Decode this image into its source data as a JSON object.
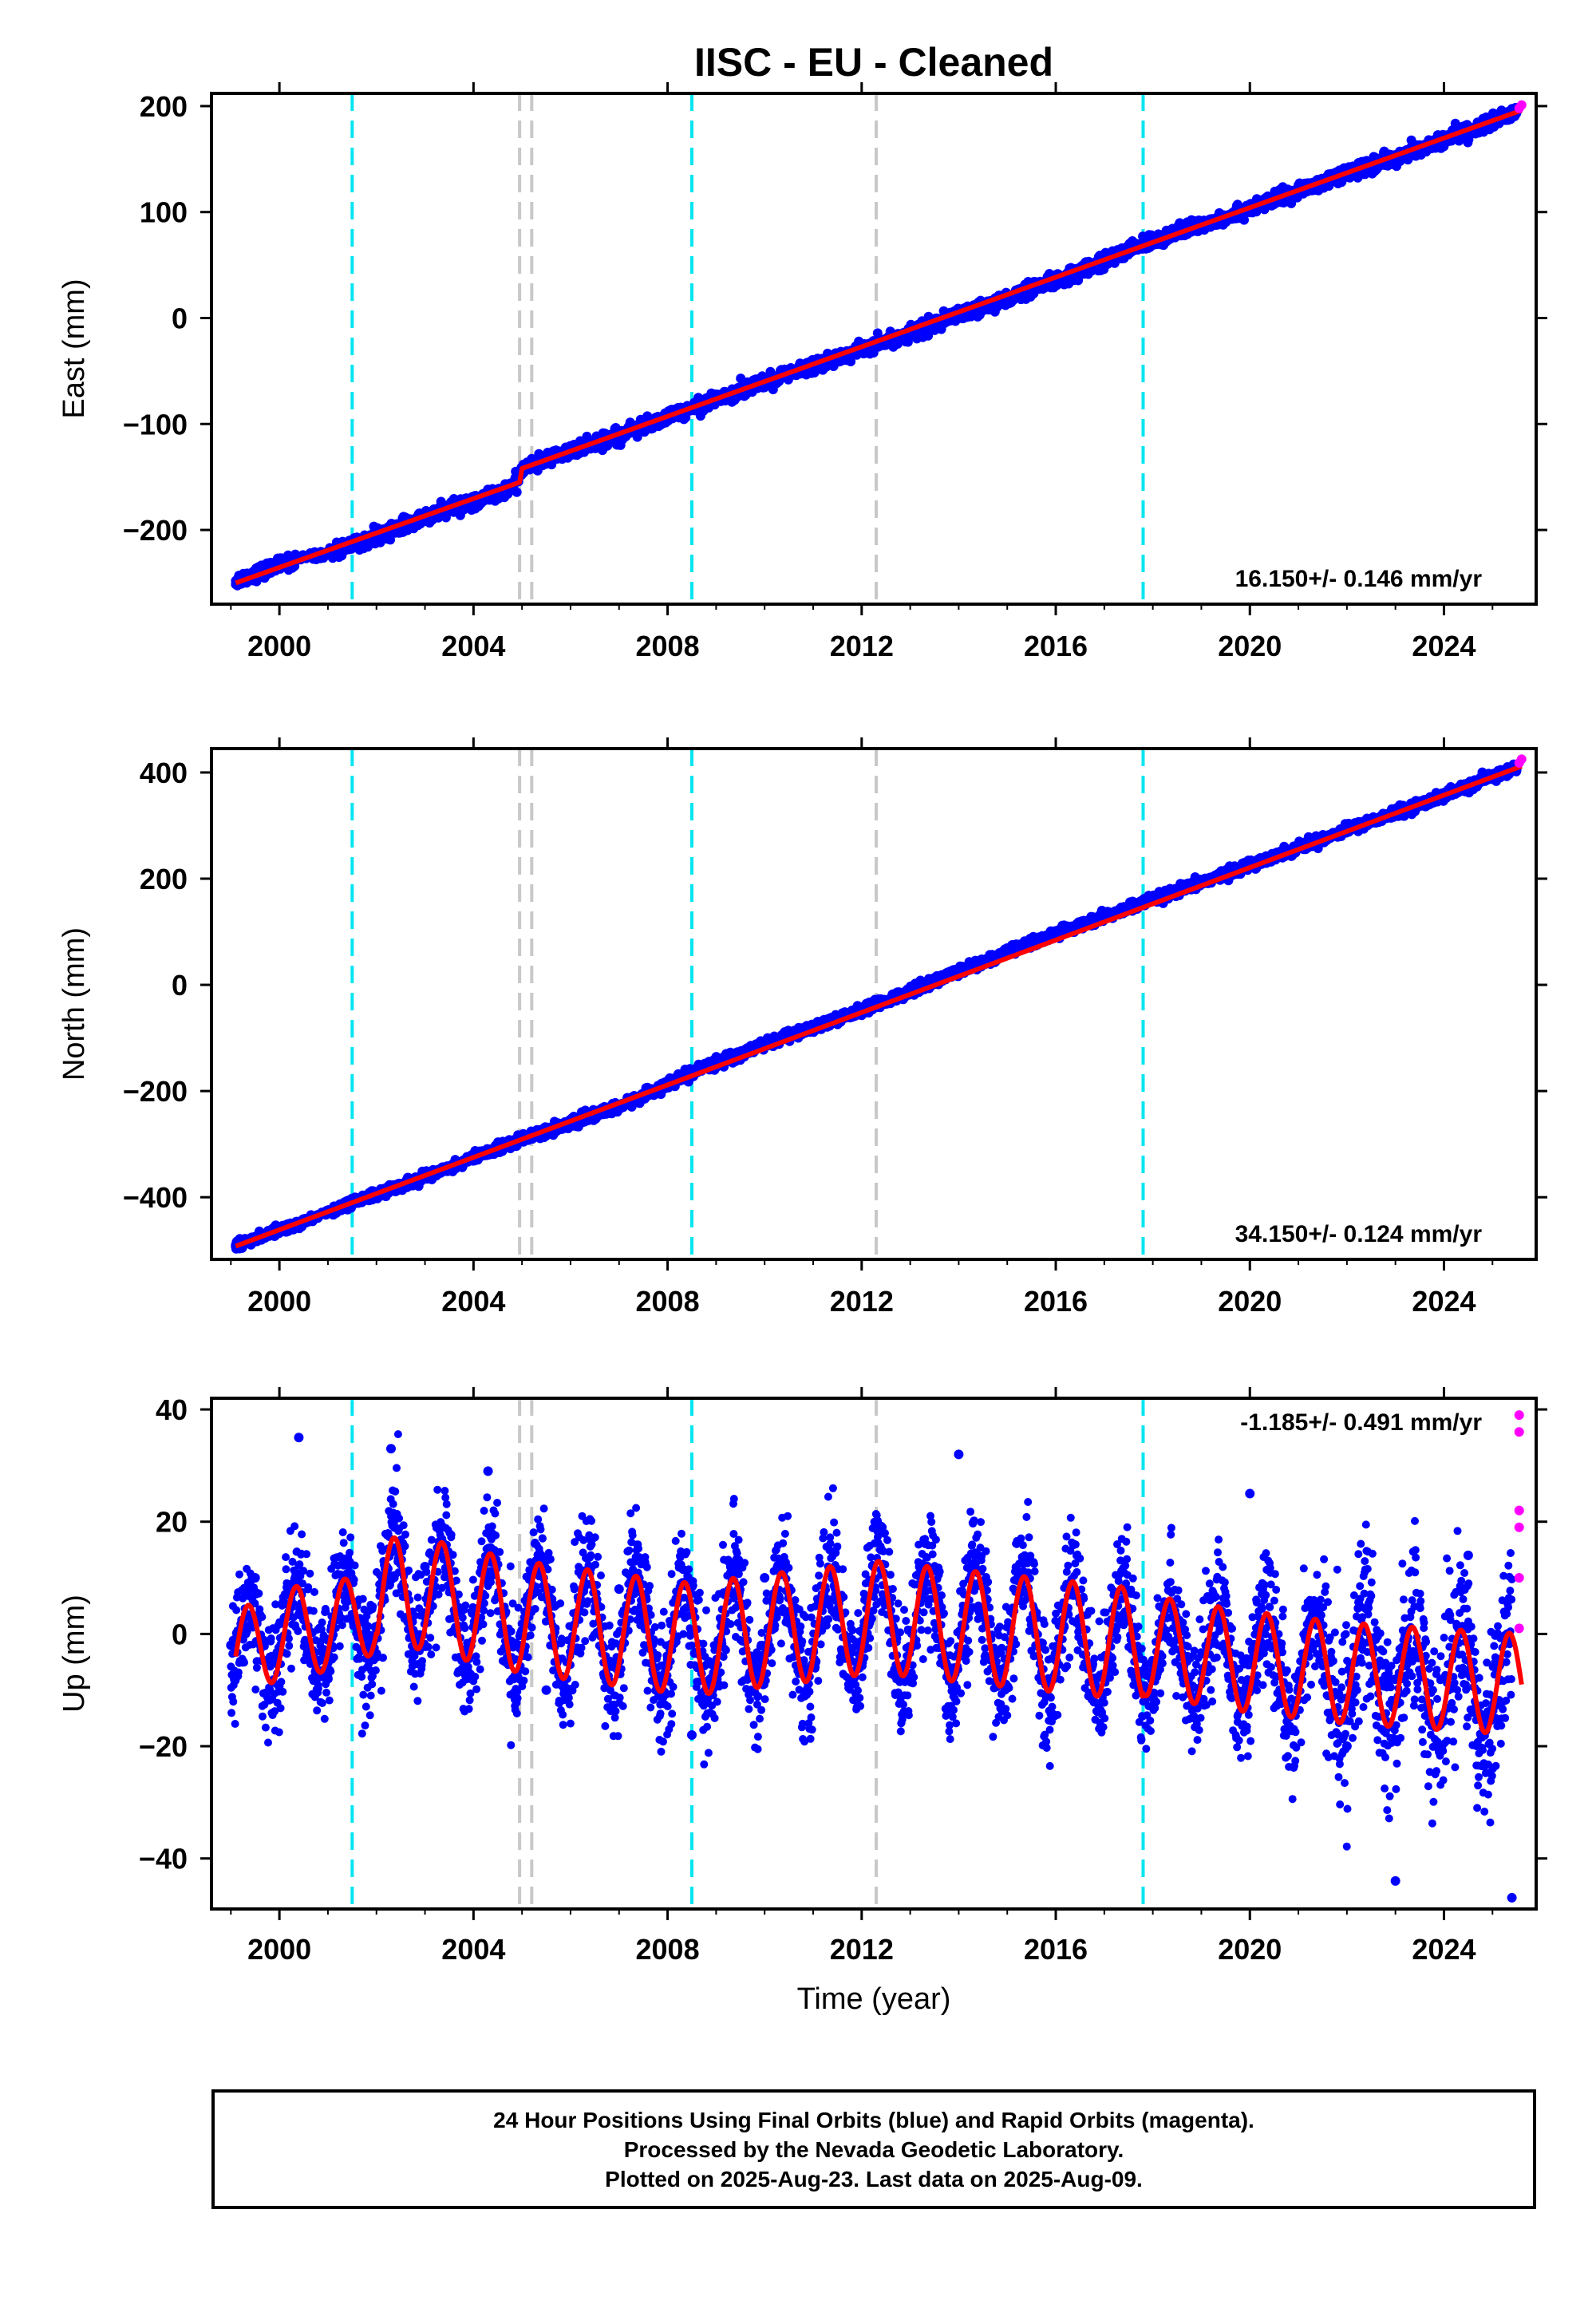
{
  "title": "IISC  - EU - Cleaned",
  "x_ticks": [
    2000,
    2004,
    2008,
    2012,
    2016,
    2020,
    2024
  ],
  "xlabel": "Time (year)",
  "footer": {
    "line1": "24 Hour Positions Using Final Orbits (blue) and Rapid Orbits (magenta).",
    "line2": "Processed by the Nevada Geodetic Laboratory.",
    "line3": "Plotted on 2025-Aug-23. Last data on 2025-Aug-09."
  },
  "colors": {
    "final_orbits": "#0000ff",
    "rapid_orbits": "#ff00ff",
    "model_fit": "#ff0000",
    "event_cyan": "#00e5f2",
    "event_gray": "#c8c8c8"
  },
  "chart_data": [
    {
      "type": "scatter",
      "ylabel": "East (mm)",
      "xlim": [
        1998.6,
        2025.9
      ],
      "ylim": [
        -270,
        212
      ],
      "y_ticks": [
        -200,
        -100,
        0,
        100,
        200
      ],
      "rate_label": "16.150+/- 0.146 mm/yr",
      "series": [
        {
          "name": "Final Orbits (blue)",
          "x": [
            1999.1,
            2000.0,
            2001.5,
            2003.0,
            2004.8,
            2005.0,
            2006.5,
            2008.5,
            2010.0,
            2012.2,
            2014.0,
            2016.0,
            2018.0,
            2020.0,
            2022.0,
            2024.0,
            2025.5
          ],
          "y": [
            -248,
            -233,
            -215,
            -188,
            -160,
            -142,
            -118,
            -85,
            -60,
            -27,
            2,
            35,
            73,
            103,
            136,
            168,
            194
          ]
        },
        {
          "name": "Rapid Orbits (magenta)",
          "x": [
            2025.55,
            2025.6
          ],
          "y": [
            198,
            201
          ]
        },
        {
          "name": "Model fit",
          "x": [
            1999.1,
            2004.95,
            2005.0,
            2025.6
          ],
          "y": [
            -250,
            -155,
            -142,
            196
          ]
        }
      ],
      "events_cyan": [
        2001.5,
        2008.5,
        2017.8
      ],
      "events_gray": [
        2004.95,
        2005.2,
        2012.3
      ]
    },
    {
      "type": "scatter",
      "ylabel": "North (mm)",
      "xlim": [
        1998.6,
        2025.9
      ],
      "ylim": [
        -517,
        445
      ],
      "y_ticks": [
        -400,
        -200,
        0,
        200,
        400
      ],
      "rate_label": "34.150+/- 0.124 mm/yr",
      "series": [
        {
          "name": "Final Orbits (blue)",
          "x": [
            1999.1,
            2000.0,
            2001.5,
            2003.0,
            2005.0,
            2007.0,
            2008.5,
            2010.0,
            2012.3,
            2014.0,
            2016.0,
            2018.0,
            2020.0,
            2022.0,
            2024.0,
            2025.5
          ],
          "y": [
            -490,
            -462,
            -410,
            -362,
            -290,
            -230,
            -166,
            -112,
            -38,
            26,
            96,
            160,
            226,
            292,
            356,
            410
          ]
        },
        {
          "name": "Rapid Orbits (magenta)",
          "x": [
            2025.55,
            2025.6
          ],
          "y": [
            418,
            425
          ]
        },
        {
          "name": "Model fit",
          "x": [
            1999.1,
            2025.6
          ],
          "y": [
            -492,
            412
          ]
        }
      ],
      "events_cyan": [
        2001.5,
        2008.5,
        2017.8
      ],
      "events_gray": [
        2004.95,
        2005.2,
        2012.3
      ]
    },
    {
      "type": "scatter",
      "ylabel": "Up (mm)",
      "xlim": [
        1998.6,
        2025.9
      ],
      "ylim": [
        -49,
        42
      ],
      "y_ticks": [
        -40,
        -20,
        0,
        20,
        40
      ],
      "rate_label": "-1.185+/- 0.491 mm/yr",
      "series": [
        {
          "name": "Final Orbits (blue)",
          "x": [
            1999.0,
            1999.5,
            2000.4,
            2001.0,
            2002.3,
            2003.0,
            2004.3,
            2005.5,
            2007.0,
            2008.5,
            2010.0,
            2012.4,
            2014.0,
            2016.0,
            2018.0,
            2020.0,
            2022.0,
            2023.0,
            2024.5,
            2025.4
          ],
          "y": [
            -2,
            10,
            35,
            -8,
            33,
            12,
            29,
            -10,
            8,
            -18,
            10,
            15,
            32,
            -7,
            -13,
            25,
            -20,
            -44,
            14,
            -47
          ]
        },
        {
          "name": "Rapid Orbits (magenta)",
          "x": [
            2025.55,
            2025.55,
            2025.55,
            2025.55,
            2025.55,
            2025.55
          ],
          "y": [
            39,
            36,
            22,
            19,
            10,
            1
          ]
        },
        {
          "name": "Model fit",
          "x": [
            1999.1,
            2000.0,
            2001.5,
            2002.5,
            2005.0,
            2008.5,
            2012.3,
            2017.8,
            2020.0,
            2022.0,
            2025.6
          ],
          "y": [
            -4,
            0,
            2,
            8,
            3,
            -1,
            3,
            -2,
            -5,
            -7,
            -9
          ]
        }
      ],
      "events_cyan": [
        2001.5,
        2008.5,
        2017.8
      ],
      "events_gray": [
        2004.95,
        2005.2,
        2012.3
      ]
    }
  ]
}
